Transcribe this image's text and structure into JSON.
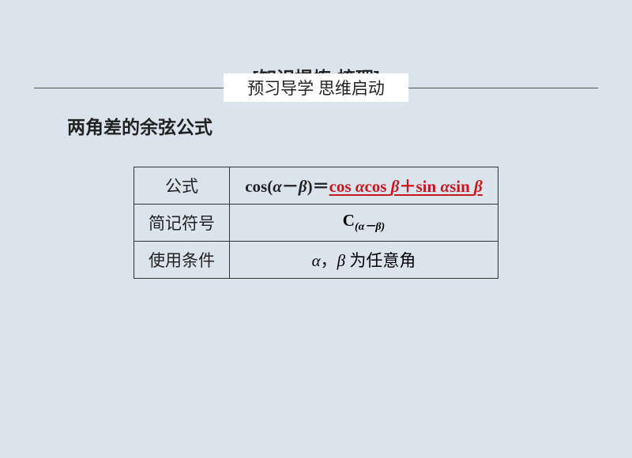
{
  "header": {
    "text": "预习导学  思维启动"
  },
  "section": {
    "title_open": "[知识提炼",
    "title_mid": "·",
    "title_close": "梳理]"
  },
  "subtitle": "两角差的余弦公式",
  "table": {
    "row1_label": "公式",
    "formula_lhs_cos": "cos(",
    "formula_alpha": "α",
    "formula_minus": "－",
    "formula_beta": "β",
    "formula_lhs_close": ")＝",
    "formula_rhs_cos1": "cos ",
    "formula_rhs_alpha1": "α",
    "formula_rhs_cos2": "cos ",
    "formula_rhs_beta1": "β",
    "formula_rhs_plus": "＋",
    "formula_rhs_sin1": "sin ",
    "formula_rhs_alpha2": "α",
    "formula_rhs_sin2": "sin ",
    "formula_rhs_beta2": "β",
    "row2_label": "简记符号",
    "notation_C": "C",
    "notation_open": "(",
    "notation_alpha": "α",
    "notation_minus": "－",
    "notation_beta": "β",
    "notation_close": ")",
    "row3_label": "使用条件",
    "cond_alpha": "α",
    "cond_comma": "，",
    "cond_beta": "β",
    "cond_space": " ",
    "cond_text": "为任意角"
  },
  "colors": {
    "background": "#dbe4ec",
    "text": "#222222",
    "accent_red": "#c8161d",
    "border": "#333333",
    "header_bg": "#ffffff"
  }
}
